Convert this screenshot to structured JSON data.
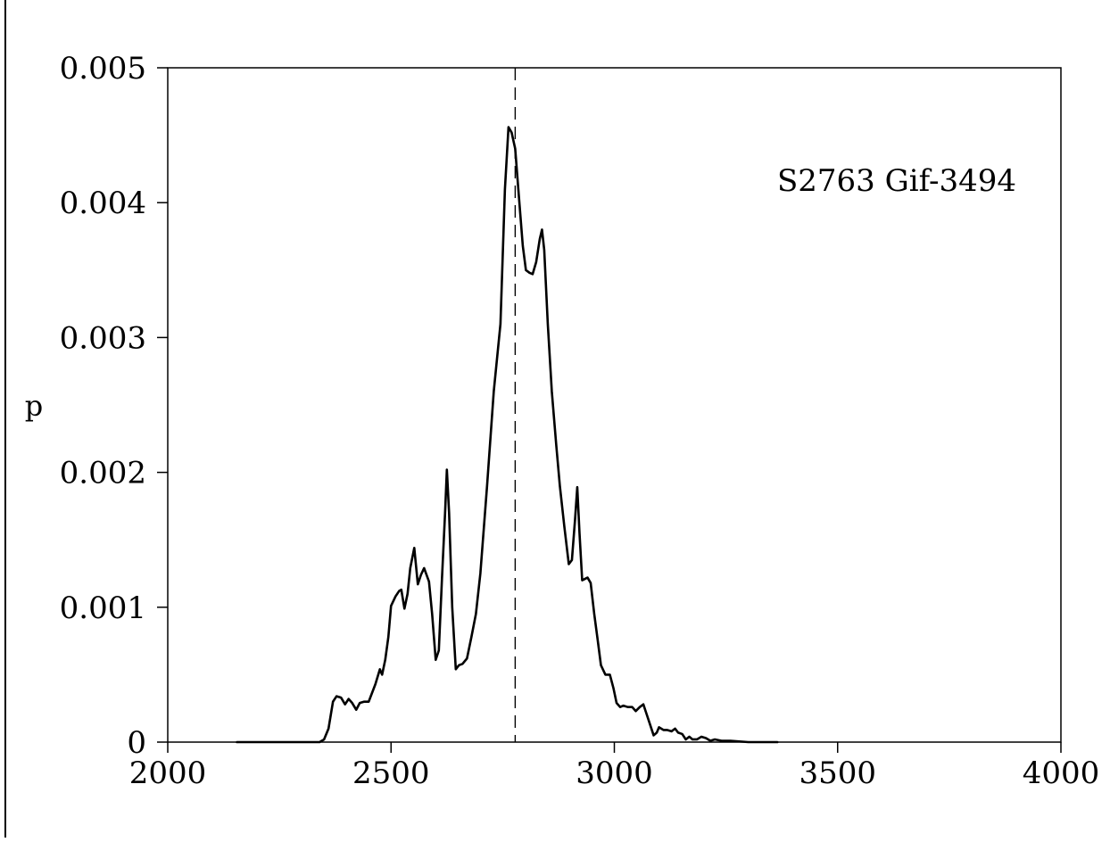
{
  "chart_data": {
    "type": "line",
    "title": "",
    "xlabel": "",
    "ylabel": "p",
    "xlim": [
      2000,
      4000
    ],
    "ylim": [
      0,
      0.005
    ],
    "xticks": [
      2000,
      2500,
      3000,
      3500,
      4000
    ],
    "yticks": [
      0,
      0.001,
      0.002,
      0.003,
      0.004,
      0.005
    ],
    "xtick_labels": [
      "2000",
      "2500",
      "3000",
      "3500",
      "4000"
    ],
    "ytick_labels": [
      "0",
      "0.001",
      "0.002",
      "0.003",
      "0.004",
      "0.005"
    ],
    "grid": false,
    "annotation": "S2763 Gif-3494",
    "reference_line": {
      "x": 2778,
      "style": "dashed"
    },
    "series": [
      {
        "points": [
          [
            2155,
            0
          ],
          [
            2300,
            0
          ],
          [
            2340,
            0
          ],
          [
            2350,
            2e-05
          ],
          [
            2360,
            0.0001
          ],
          [
            2365,
            0.0002
          ],
          [
            2370,
            0.0003
          ],
          [
            2378,
            0.00034
          ],
          [
            2388,
            0.00033
          ],
          [
            2397,
            0.00028
          ],
          [
            2405,
            0.00032
          ],
          [
            2413,
            0.00029
          ],
          [
            2422,
            0.00024
          ],
          [
            2430,
            0.00029
          ],
          [
            2440,
            0.0003
          ],
          [
            2450,
            0.0003
          ],
          [
            2465,
            0.00043
          ],
          [
            2475,
            0.00054
          ],
          [
            2480,
            0.0005
          ],
          [
            2487,
            0.00061
          ],
          [
            2494,
            0.00078
          ],
          [
            2500,
            0.00101
          ],
          [
            2510,
            0.00108
          ],
          [
            2518,
            0.00112
          ],
          [
            2523,
            0.00113
          ],
          [
            2530,
            0.00099
          ],
          [
            2537,
            0.0011
          ],
          [
            2543,
            0.00129
          ],
          [
            2552,
            0.00144
          ],
          [
            2560,
            0.00117
          ],
          [
            2567,
            0.00124
          ],
          [
            2574,
            0.00129
          ],
          [
            2585,
            0.00119
          ],
          [
            2592,
            0.00095
          ],
          [
            2600,
            0.00061
          ],
          [
            2607,
            0.00068
          ],
          [
            2614,
            0.00121
          ],
          [
            2621,
            0.0017
          ],
          [
            2625,
            0.00202
          ],
          [
            2630,
            0.0017
          ],
          [
            2637,
            0.001
          ],
          [
            2645,
            0.00054
          ],
          [
            2652,
            0.00057
          ],
          [
            2660,
            0.00058
          ],
          [
            2670,
            0.00062
          ],
          [
            2680,
            0.00078
          ],
          [
            2690,
            0.00095
          ],
          [
            2700,
            0.00125
          ],
          [
            2715,
            0.0019
          ],
          [
            2730,
            0.0026
          ],
          [
            2745,
            0.0031
          ],
          [
            2755,
            0.0041
          ],
          [
            2763,
            0.00456
          ],
          [
            2770,
            0.00452
          ],
          [
            2778,
            0.0044
          ],
          [
            2785,
            0.0041
          ],
          [
            2795,
            0.00368
          ],
          [
            2802,
            0.0035
          ],
          [
            2810,
            0.00348
          ],
          [
            2817,
            0.00347
          ],
          [
            2825,
            0.00356
          ],
          [
            2833,
            0.00373
          ],
          [
            2838,
            0.0038
          ],
          [
            2843,
            0.00365
          ],
          [
            2851,
            0.0031
          ],
          [
            2860,
            0.0026
          ],
          [
            2870,
            0.0022
          ],
          [
            2878,
            0.0019
          ],
          [
            2888,
            0.0016
          ],
          [
            2898,
            0.00132
          ],
          [
            2905,
            0.00135
          ],
          [
            2912,
            0.00165
          ],
          [
            2917,
            0.00189
          ],
          [
            2922,
            0.00155
          ],
          [
            2928,
            0.0012
          ],
          [
            2934,
            0.00121
          ],
          [
            2940,
            0.00122
          ],
          [
            2947,
            0.00118
          ],
          [
            2955,
            0.00095
          ],
          [
            2963,
            0.00075
          ],
          [
            2970,
            0.00057
          ],
          [
            2980,
            0.0005
          ],
          [
            2990,
            0.0005
          ],
          [
            2998,
            0.0004
          ],
          [
            3005,
            0.00029
          ],
          [
            3013,
            0.00026
          ],
          [
            3020,
            0.00027
          ],
          [
            3030,
            0.00026
          ],
          [
            3040,
            0.00026
          ],
          [
            3048,
            0.00023
          ],
          [
            3057,
            0.00026
          ],
          [
            3065,
            0.00028
          ],
          [
            3072,
            0.00021
          ],
          [
            3080,
            0.00013
          ],
          [
            3088,
            5e-05
          ],
          [
            3095,
            7e-05
          ],
          [
            3100,
            0.00011
          ],
          [
            3110,
            9e-05
          ],
          [
            3118,
            9e-05
          ],
          [
            3128,
            8e-05
          ],
          [
            3136,
            0.0001
          ],
          [
            3143,
            7e-05
          ],
          [
            3152,
            6e-05
          ],
          [
            3160,
            2e-05
          ],
          [
            3168,
            4e-05
          ],
          [
            3175,
            2e-05
          ],
          [
            3185,
            2e-05
          ],
          [
            3195,
            4e-05
          ],
          [
            3205,
            3e-05
          ],
          [
            3215,
            1e-05
          ],
          [
            3225,
            2e-05
          ],
          [
            3240,
            1e-05
          ],
          [
            3260,
            1e-05
          ],
          [
            3300,
            0
          ],
          [
            3365,
            0
          ]
        ]
      }
    ]
  }
}
